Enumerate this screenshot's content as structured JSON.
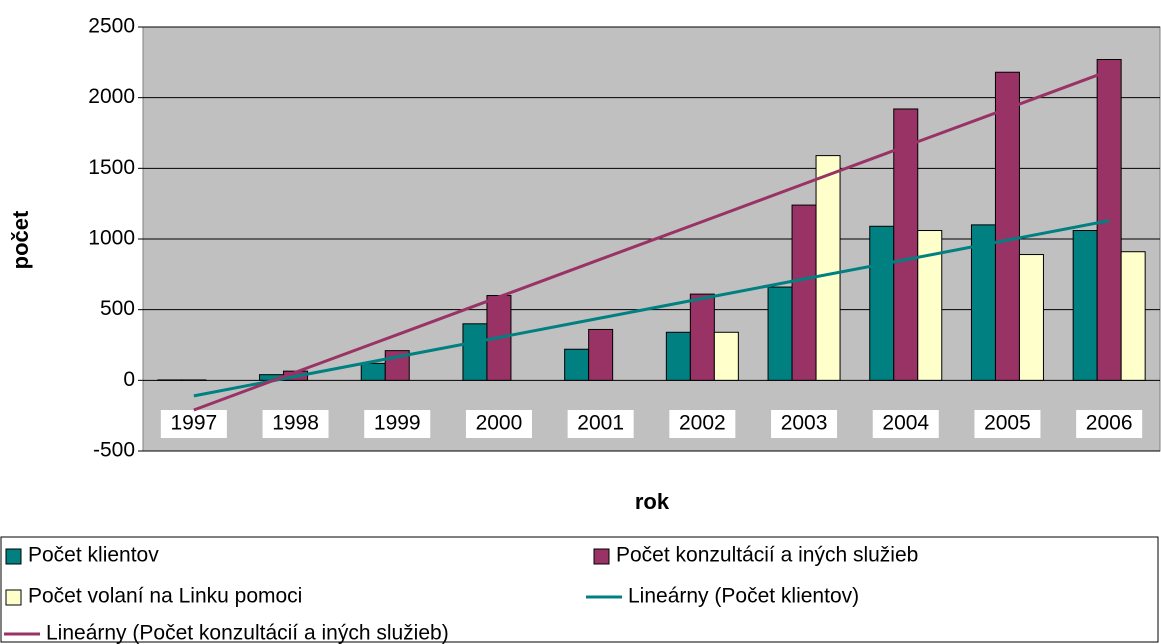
{
  "chart_data": {
    "type": "bar",
    "x_label": "rok",
    "y_label": "počet",
    "categories": [
      "1997",
      "1998",
      "1999",
      "2000",
      "2001",
      "2002",
      "2003",
      "2004",
      "2005",
      "2006"
    ],
    "series": [
      {
        "name": "Počet klientov",
        "type": "bar",
        "color": "#008080",
        "values": [
          3,
          40,
          120,
          400,
          220,
          340,
          660,
          1090,
          1100,
          1060
        ]
      },
      {
        "name": "Počet konzultácií a iných služieb",
        "type": "bar",
        "color": "#993366",
        "values": [
          3,
          65,
          210,
          600,
          360,
          610,
          1240,
          1920,
          2180,
          2270
        ]
      },
      {
        "name": "Počet volaní na Linku pomoci",
        "type": "bar",
        "color": "#ffffcc",
        "values": [
          null,
          null,
          null,
          null,
          null,
          340,
          1590,
          1060,
          890,
          910
        ]
      },
      {
        "name": "Lineárny (Počet klientov)",
        "type": "line",
        "color": "#008080",
        "values": [
          -110,
          28,
          166,
          303,
          441,
          579,
          717,
          854,
          992,
          1130
        ]
      },
      {
        "name": "Lineárny (Počet konzultácií a iných služieb)",
        "type": "line",
        "color": "#993366",
        "values": [
          -210,
          57,
          323,
          590,
          857,
          1123,
          1390,
          1657,
          1923,
          2190
        ]
      }
    ],
    "ylim": [
      -500,
      2500
    ],
    "yticks": [
      -500,
      0,
      500,
      1000,
      1500,
      2000,
      2500
    ],
    "grid": true,
    "plot_background": "#c0c0c0",
    "legend": "bottom"
  }
}
